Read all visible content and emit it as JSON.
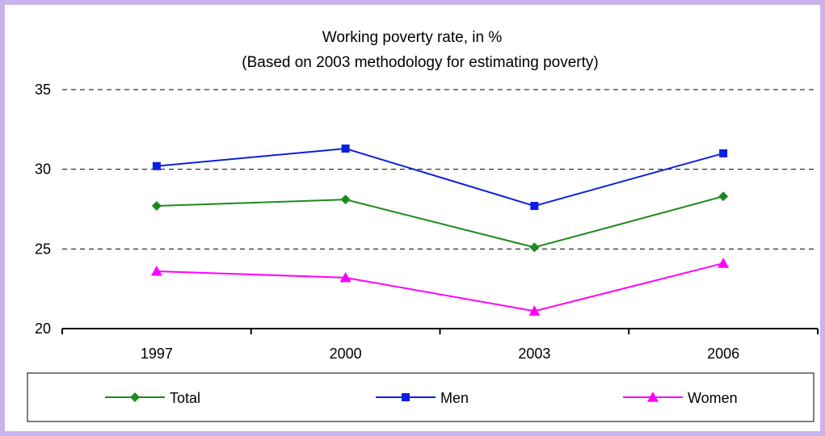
{
  "chart_data": {
    "type": "line",
    "title": "Working poverty rate, in %",
    "subtitle": "(Based on 2003 methodology for estimating poverty)",
    "categories": [
      "1997",
      "2000",
      "2003",
      "2006"
    ],
    "ylim": [
      20,
      35
    ],
    "yticks": [
      20,
      25,
      30,
      35
    ],
    "grid": true,
    "legend_position": "bottom",
    "series": [
      {
        "name": "Total",
        "values": [
          27.7,
          28.1,
          25.1,
          28.3
        ],
        "color": "#1e8a1e",
        "marker": "diamond"
      },
      {
        "name": "Men",
        "values": [
          30.2,
          31.3,
          27.7,
          31.0
        ],
        "color": "#0b1fe0",
        "marker": "square"
      },
      {
        "name": "Women",
        "values": [
          23.6,
          23.2,
          21.1,
          24.1
        ],
        "color": "#ff00ff",
        "marker": "triangle"
      }
    ]
  }
}
